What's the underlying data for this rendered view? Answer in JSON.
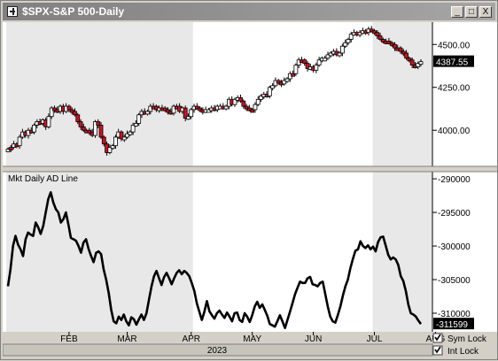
{
  "window": {
    "title": "$SPX-S&P 500-Daily",
    "buttons": [
      "_",
      "□",
      "X"
    ]
  },
  "colors": {
    "up_candle": "#ffffff",
    "down_candle": "#d01020",
    "line": "#000000",
    "shade": "#e8e8e8"
  },
  "footer": {
    "year": "2023",
    "sym_lock_label": "Sym Lock",
    "int_lock_label": "Int Lock",
    "sym_lock_checked": true,
    "int_lock_checked": true
  },
  "chart_data": [
    {
      "type": "candlestick",
      "title": "$SPX-S&P 500-Daily",
      "y_ticks": [
        4000,
        4250,
        4500
      ],
      "y_tick_labels": [
        "4000.00",
        "4250.00",
        "4500.00"
      ],
      "ylim": [
        3800,
        4620
      ],
      "last_value_label": "4387.55",
      "x_month_labels": [
        "FEB",
        "MAR",
        "APR",
        "MAY",
        "JUN",
        "JUL",
        "AUG"
      ],
      "x_month_index": [
        21,
        41,
        63,
        84,
        105,
        126,
        147
      ],
      "shaded_ranges": [
        [
          0,
          63
        ],
        [
          126,
          156
        ]
      ],
      "values": [
        3890,
        3900,
        3920,
        3910,
        3960,
        3990,
        3970,
        4000,
        3990,
        4030,
        4050,
        4040,
        4060,
        4020,
        4080,
        4130,
        4120,
        4110,
        4140,
        4110,
        4140,
        4120,
        4110,
        4090,
        4050,
        4020,
        4000,
        4000,
        3990,
        3970,
        4050,
        4030,
        3960,
        3920,
        3870,
        3900,
        3910,
        3960,
        3990,
        3950,
        3960,
        3980,
        3990,
        4030,
        4040,
        4090,
        4110,
        4100,
        4110,
        4140,
        4140,
        4120,
        4130,
        4130,
        4120,
        4110,
        4100,
        4140,
        4140,
        4110,
        4130,
        4070,
        4080,
        4120,
        4140,
        4130,
        4120,
        4110,
        4120,
        4120,
        4130,
        4120,
        4140,
        4140,
        4130,
        4140,
        4180,
        4150,
        4180,
        4190,
        4170,
        4140,
        4130,
        4120,
        4120,
        4150,
        4180,
        4200,
        4210,
        4200,
        4250,
        4260,
        4290,
        4280,
        4270,
        4290,
        4300,
        4330,
        4330,
        4380,
        4410,
        4410,
        4390,
        4360,
        4370,
        4350,
        4380,
        4410,
        4420,
        4420,
        4440,
        4450,
        4460,
        4440,
        4450,
        4490,
        4510,
        4530,
        4560,
        4570,
        4560,
        4570,
        4580,
        4570,
        4590,
        4580,
        4570,
        4550,
        4530,
        4520,
        4520,
        4510,
        4500,
        4480,
        4480,
        4460,
        4450,
        4420,
        4410,
        4380,
        4370,
        4390,
        4400
      ],
      "up": [
        1,
        0,
        1,
        0,
        1,
        1,
        0,
        1,
        0,
        1,
        1,
        0,
        1,
        0,
        1,
        1,
        0,
        0,
        1,
        0,
        1,
        0,
        0,
        0,
        0,
        0,
        0,
        0,
        0,
        0,
        1,
        0,
        0,
        0,
        0,
        1,
        1,
        1,
        1,
        0,
        1,
        1,
        1,
        1,
        1,
        1,
        1,
        0,
        1,
        1,
        0,
        0,
        1,
        0,
        0,
        0,
        0,
        1,
        0,
        0,
        1,
        0,
        1,
        1,
        1,
        0,
        0,
        0,
        1,
        1,
        1,
        0,
        1,
        1,
        0,
        1,
        1,
        0,
        1,
        1,
        0,
        0,
        0,
        0,
        0,
        1,
        1,
        1,
        1,
        0,
        1,
        1,
        1,
        0,
        0,
        1,
        1,
        1,
        0,
        1,
        1,
        0,
        0,
        0,
        1,
        0,
        1,
        1,
        1,
        1,
        1,
        1,
        1,
        0,
        1,
        1,
        1,
        1,
        1,
        1,
        0,
        1,
        1,
        0,
        1,
        0,
        0,
        0,
        0,
        0,
        0,
        0,
        0,
        0,
        0,
        0,
        0,
        0,
        0,
        0,
        0,
        1,
        1
      ]
    },
    {
      "type": "line",
      "title": "Mkt Daily AD Line",
      "y_ticks": [
        -290000,
        -295000,
        -300000,
        -305000,
        -310000
      ],
      "y_tick_labels": [
        "-290000",
        "-295000",
        "-300000",
        "-305000",
        "-310000"
      ],
      "ylim": [
        -312500,
        -289200
      ],
      "last_value_label": "-311599",
      "series": [
        {
          "values": [
            -306000,
            -303500,
            -300000,
            -298500,
            -299800,
            -300500,
            -301500,
            -299000,
            -298000,
            -298300,
            -298500,
            -296500,
            -297200,
            -298200,
            -297000,
            -295000,
            -293000,
            -292000,
            -293500,
            -294500,
            -295000,
            -296500,
            -296000,
            -295000,
            -296800,
            -298800,
            -299000,
            -299200,
            -300000,
            -301000,
            -299500,
            -299000,
            -300400,
            -301500,
            -302400,
            -301000,
            -300800,
            -301200,
            -303500,
            -305000,
            -307000,
            -309500,
            -311200,
            -311500,
            -310500,
            -311000,
            -310200,
            -311200,
            -311800,
            -310600,
            -310900,
            -311700,
            -310900,
            -310200,
            -311000,
            -310000,
            -308000,
            -306000,
            -304500,
            -303700,
            -304800,
            -305800,
            -304600,
            -304000,
            -304800,
            -305700,
            -304800,
            -304000,
            -303600,
            -304200,
            -303700,
            -304000,
            -304500,
            -305500,
            -306700,
            -308500,
            -309800,
            -311000,
            -309800,
            -308200,
            -309700,
            -310300,
            -310800,
            -310000,
            -309600,
            -310200,
            -310700,
            -309900,
            -310500,
            -311200,
            -310000,
            -309900,
            -311000,
            -311300,
            -310000,
            -310500,
            -311300,
            -310300,
            -309000,
            -308300,
            -309200,
            -308700,
            -309500,
            -310400,
            -311600,
            -311800,
            -312000,
            -311200,
            -310300,
            -311200,
            -312200,
            -311000,
            -309800,
            -308500,
            -307200,
            -306200,
            -305300,
            -305500,
            -305500,
            -304800,
            -304600,
            -305700,
            -305800,
            -306000,
            -305500,
            -305300,
            -307100,
            -309000,
            -310500,
            -311200,
            -311400,
            -310300,
            -309000,
            -307400,
            -306000,
            -305000,
            -303300,
            -301900,
            -300700,
            -300500,
            -299300,
            -300000,
            -300300,
            -299900,
            -300500,
            -300100,
            -300800,
            -299400,
            -298700,
            -298600,
            -299900,
            -301300,
            -302000,
            -301700,
            -302000,
            -302800,
            -304500,
            -305200,
            -306700,
            -308700,
            -310000,
            -310200,
            -310500,
            -311100,
            -311600
          ]
        }
      ]
    }
  ]
}
